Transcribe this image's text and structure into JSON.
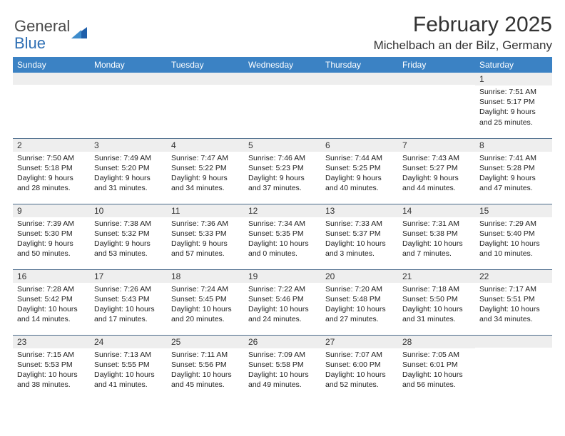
{
  "logo": {
    "line1": "General",
    "line2": "Blue"
  },
  "title": "February 2025",
  "location": "Michelbach an der Bilz, Germany",
  "colors": {
    "header_bg": "#3b82c4",
    "header_text": "#ffffff",
    "row_border": "#4a6a8a",
    "daynum_bg": "#eeeeee",
    "logo_gray": "#4a4a4a",
    "logo_blue": "#2e6fb4"
  },
  "daysOfWeek": [
    "Sunday",
    "Monday",
    "Tuesday",
    "Wednesday",
    "Thursday",
    "Friday",
    "Saturday"
  ],
  "weeks": [
    [
      null,
      null,
      null,
      null,
      null,
      null,
      {
        "n": "1",
        "sr": "7:51 AM",
        "ss": "5:17 PM",
        "dl": "9 hours and 25 minutes."
      }
    ],
    [
      {
        "n": "2",
        "sr": "7:50 AM",
        "ss": "5:18 PM",
        "dl": "9 hours and 28 minutes."
      },
      {
        "n": "3",
        "sr": "7:49 AM",
        "ss": "5:20 PM",
        "dl": "9 hours and 31 minutes."
      },
      {
        "n": "4",
        "sr": "7:47 AM",
        "ss": "5:22 PM",
        "dl": "9 hours and 34 minutes."
      },
      {
        "n": "5",
        "sr": "7:46 AM",
        "ss": "5:23 PM",
        "dl": "9 hours and 37 minutes."
      },
      {
        "n": "6",
        "sr": "7:44 AM",
        "ss": "5:25 PM",
        "dl": "9 hours and 40 minutes."
      },
      {
        "n": "7",
        "sr": "7:43 AM",
        "ss": "5:27 PM",
        "dl": "9 hours and 44 minutes."
      },
      {
        "n": "8",
        "sr": "7:41 AM",
        "ss": "5:28 PM",
        "dl": "9 hours and 47 minutes."
      }
    ],
    [
      {
        "n": "9",
        "sr": "7:39 AM",
        "ss": "5:30 PM",
        "dl": "9 hours and 50 minutes."
      },
      {
        "n": "10",
        "sr": "7:38 AM",
        "ss": "5:32 PM",
        "dl": "9 hours and 53 minutes."
      },
      {
        "n": "11",
        "sr": "7:36 AM",
        "ss": "5:33 PM",
        "dl": "9 hours and 57 minutes."
      },
      {
        "n": "12",
        "sr": "7:34 AM",
        "ss": "5:35 PM",
        "dl": "10 hours and 0 minutes."
      },
      {
        "n": "13",
        "sr": "7:33 AM",
        "ss": "5:37 PM",
        "dl": "10 hours and 3 minutes."
      },
      {
        "n": "14",
        "sr": "7:31 AM",
        "ss": "5:38 PM",
        "dl": "10 hours and 7 minutes."
      },
      {
        "n": "15",
        "sr": "7:29 AM",
        "ss": "5:40 PM",
        "dl": "10 hours and 10 minutes."
      }
    ],
    [
      {
        "n": "16",
        "sr": "7:28 AM",
        "ss": "5:42 PM",
        "dl": "10 hours and 14 minutes."
      },
      {
        "n": "17",
        "sr": "7:26 AM",
        "ss": "5:43 PM",
        "dl": "10 hours and 17 minutes."
      },
      {
        "n": "18",
        "sr": "7:24 AM",
        "ss": "5:45 PM",
        "dl": "10 hours and 20 minutes."
      },
      {
        "n": "19",
        "sr": "7:22 AM",
        "ss": "5:46 PM",
        "dl": "10 hours and 24 minutes."
      },
      {
        "n": "20",
        "sr": "7:20 AM",
        "ss": "5:48 PM",
        "dl": "10 hours and 27 minutes."
      },
      {
        "n": "21",
        "sr": "7:18 AM",
        "ss": "5:50 PM",
        "dl": "10 hours and 31 minutes."
      },
      {
        "n": "22",
        "sr": "7:17 AM",
        "ss": "5:51 PM",
        "dl": "10 hours and 34 minutes."
      }
    ],
    [
      {
        "n": "23",
        "sr": "7:15 AM",
        "ss": "5:53 PM",
        "dl": "10 hours and 38 minutes."
      },
      {
        "n": "24",
        "sr": "7:13 AM",
        "ss": "5:55 PM",
        "dl": "10 hours and 41 minutes."
      },
      {
        "n": "25",
        "sr": "7:11 AM",
        "ss": "5:56 PM",
        "dl": "10 hours and 45 minutes."
      },
      {
        "n": "26",
        "sr": "7:09 AM",
        "ss": "5:58 PM",
        "dl": "10 hours and 49 minutes."
      },
      {
        "n": "27",
        "sr": "7:07 AM",
        "ss": "6:00 PM",
        "dl": "10 hours and 52 minutes."
      },
      {
        "n": "28",
        "sr": "7:05 AM",
        "ss": "6:01 PM",
        "dl": "10 hours and 56 minutes."
      },
      null
    ]
  ],
  "labels": {
    "sunrise": "Sunrise:",
    "sunset": "Sunset:",
    "daylight": "Daylight:"
  }
}
